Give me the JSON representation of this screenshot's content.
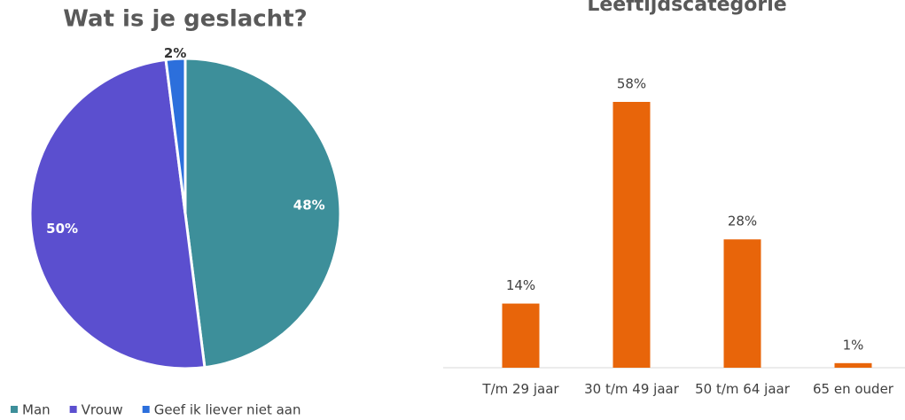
{
  "chart_data": [
    {
      "type": "pie",
      "title": "Wat is je geslacht?",
      "categories": [
        "Man",
        "Vrouw",
        "Geef ik liever niet aan"
      ],
      "values": [
        48,
        50,
        2
      ],
      "value_labels": [
        "48%",
        "50%",
        "2%"
      ],
      "colors": [
        "#3d8f9a",
        "#5b4fcf",
        "#2c6fdc"
      ],
      "legend": "bottom"
    },
    {
      "type": "bar",
      "title": "Leeftijdscategorie",
      "categories": [
        "T/m 29 jaar",
        "30 t/m 49 jaar",
        "50 t/m 64 jaar",
        "65 en ouder"
      ],
      "values": [
        14,
        58,
        28,
        1
      ],
      "value_labels": [
        "14%",
        "58%",
        "28%",
        "1%"
      ],
      "color": "#e8650a"
    }
  ]
}
